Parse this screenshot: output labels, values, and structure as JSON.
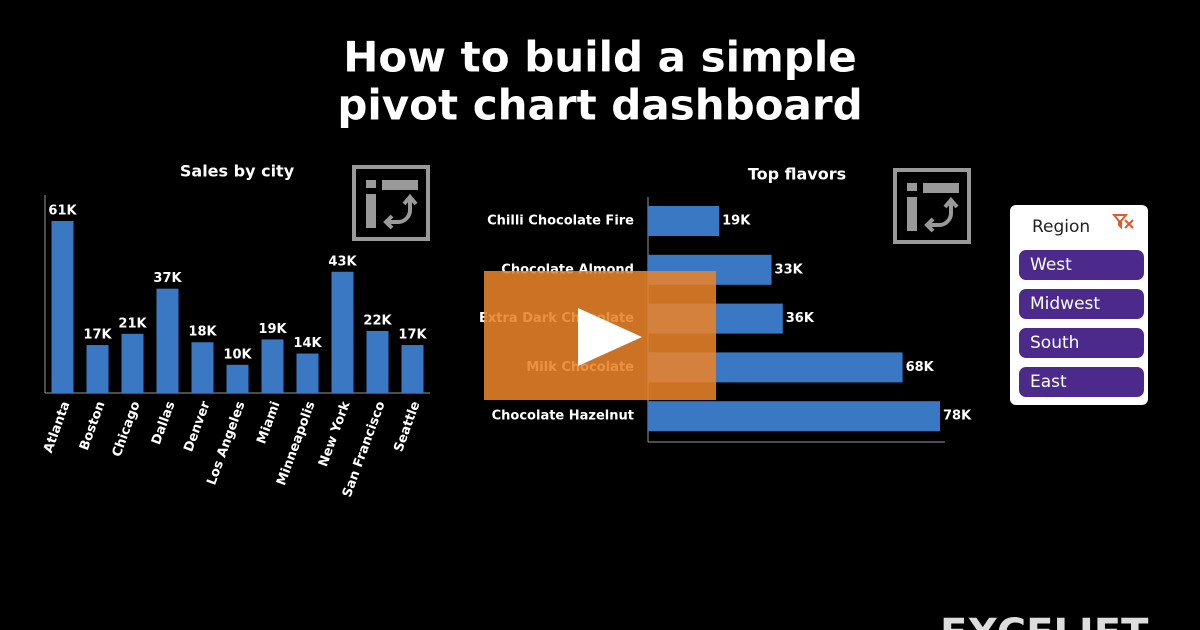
{
  "header": {
    "title_lines": [
      "How to build a simple",
      "pivot chart dashboard"
    ]
  },
  "chart_data": [
    {
      "type": "bar",
      "title": "Sales by city",
      "categories": [
        "Atlanta",
        "Boston",
        "Chicago",
        "Dallas",
        "Denver",
        "Los Angeles",
        "Miami",
        "Minneapolis",
        "New York",
        "San Francisco",
        "Seattle"
      ],
      "values": [
        61000,
        17000,
        21000,
        37000,
        18000,
        10000,
        19000,
        14000,
        43000,
        22000,
        17000
      ],
      "value_labels": [
        "61K",
        "17K",
        "21K",
        "37K",
        "18K",
        "10K",
        "19K",
        "14K",
        "43K",
        "22K",
        "17K"
      ],
      "color": "#3a78c3"
    },
    {
      "type": "hbar",
      "title": "Top flavors",
      "categories": [
        "Chilli Chocolate Fire",
        "Chocolate Almond",
        "Extra Dark Chocolate",
        "Milk Chocolate",
        "Chocolate Hazelnut"
      ],
      "values": [
        19000,
        33000,
        36000,
        68000,
        78000
      ],
      "value_labels": [
        "19K",
        "33K",
        "36K",
        "68K",
        "78K"
      ],
      "color": "#3a78c3"
    }
  ],
  "slicer": {
    "title": "Region",
    "items": [
      "West",
      "Midwest",
      "South",
      "East"
    ]
  },
  "logo": "EXCELJET"
}
